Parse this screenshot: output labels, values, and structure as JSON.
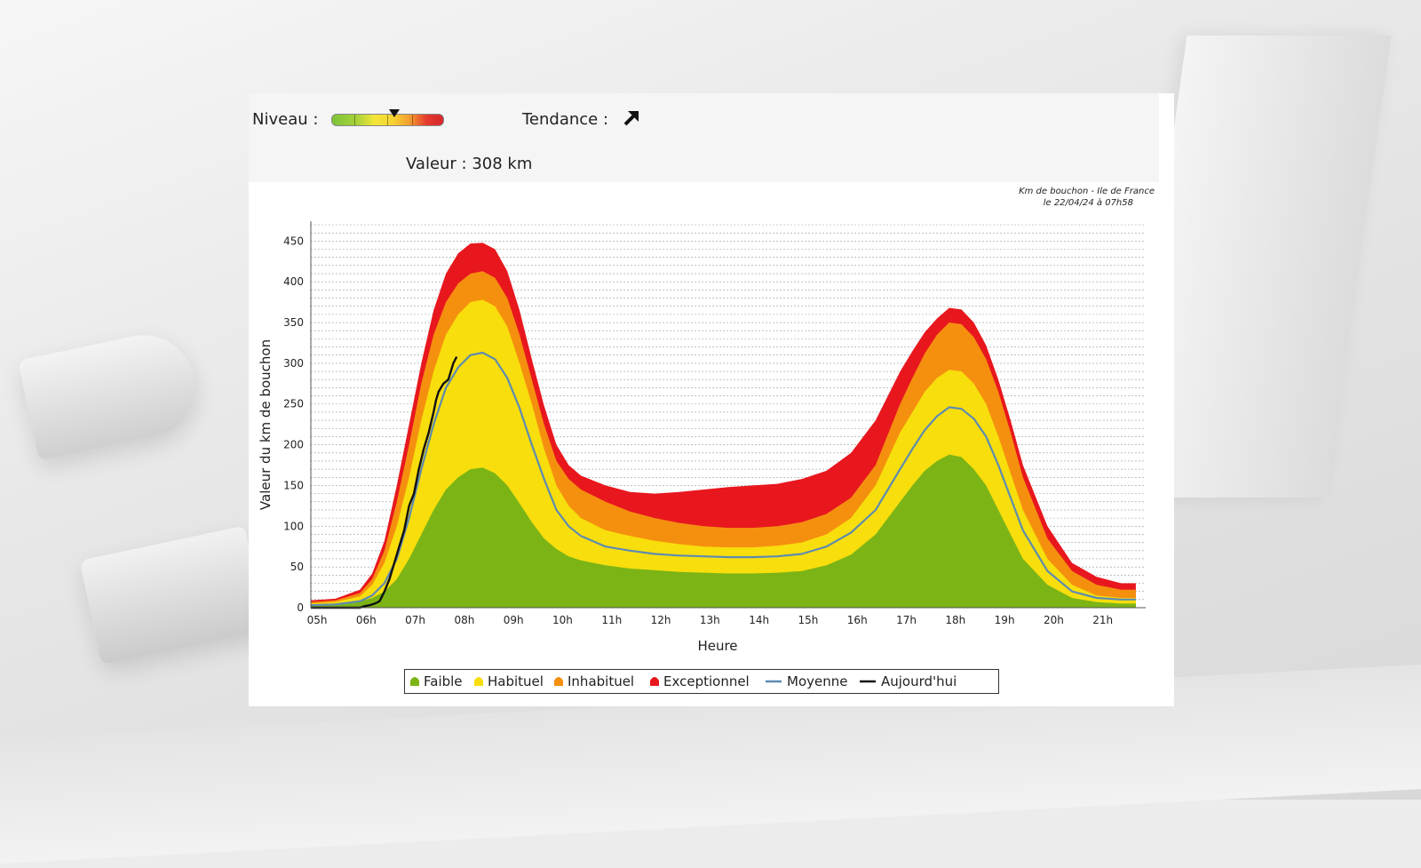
{
  "header": {
    "niveau_label": "Niveau :",
    "tendance_label": "Tendance :",
    "tendance_icon": "arrow-up-right-icon",
    "valeur_label": "Valeur : 308 km",
    "gauge_level": 0.62
  },
  "colors": {
    "faible": "#7cb416",
    "habituel": "#f8de0c",
    "inhabituel": "#f5900f",
    "exceptionnel": "#e8171e",
    "moyenne": "#5e8bb0",
    "aujourdhui": "#111111"
  },
  "chart_data": {
    "type": "area",
    "title": "Km de bouchon - Ile de France",
    "subtitle": "le 22/04/24 à 07h58",
    "xlabel": "Heure",
    "ylabel": "Valeur du  km de bouchon",
    "xlim": [
      5,
      22
    ],
    "ylim": [
      0,
      470
    ],
    "x_ticks": [
      5,
      6,
      7,
      8,
      9,
      10,
      11,
      12,
      13,
      14,
      15,
      16,
      17,
      18,
      19,
      20,
      21
    ],
    "x_tick_labels": [
      "05h",
      "06h",
      "07h",
      "08h",
      "09h",
      "10h",
      "11h",
      "12h",
      "13h",
      "14h",
      "15h",
      "16h",
      "17h",
      "18h",
      "19h",
      "20h",
      "21h"
    ],
    "y_ticks": [
      0,
      50,
      100,
      150,
      200,
      250,
      300,
      350,
      400,
      450
    ],
    "y_tick_labels": [
      "0",
      "50",
      "100",
      "150",
      "200",
      "250",
      "300",
      "350",
      "400",
      "450"
    ],
    "grid": true,
    "x": [
      5.0,
      5.5,
      6.0,
      6.25,
      6.5,
      6.75,
      7.0,
      7.25,
      7.5,
      7.75,
      8.0,
      8.25,
      8.5,
      8.75,
      9.0,
      9.25,
      9.5,
      9.75,
      10.0,
      10.25,
      10.5,
      11.0,
      11.5,
      12.0,
      12.5,
      13.0,
      13.5,
      14.0,
      14.5,
      15.0,
      15.5,
      16.0,
      16.5,
      17.0,
      17.25,
      17.5,
      17.75,
      18.0,
      18.25,
      18.5,
      18.75,
      19.0,
      19.25,
      19.5,
      20.0,
      20.5,
      21.0,
      21.5,
      21.8
    ],
    "series": [
      {
        "name": "Faible",
        "kind": "band",
        "values": [
          4,
          5,
          8,
          12,
          20,
          35,
          60,
          90,
          120,
          145,
          160,
          170,
          172,
          165,
          150,
          128,
          105,
          85,
          72,
          63,
          58,
          52,
          48,
          46,
          44,
          43,
          42,
          42,
          43,
          45,
          52,
          65,
          90,
          130,
          150,
          168,
          180,
          188,
          185,
          170,
          150,
          120,
          90,
          60,
          28,
          12,
          7,
          5,
          5
        ]
      },
      {
        "name": "Habituel",
        "kind": "band",
        "values": [
          5,
          7,
          14,
          28,
          55,
          100,
          160,
          230,
          290,
          335,
          360,
          375,
          378,
          370,
          345,
          300,
          250,
          195,
          150,
          125,
          110,
          95,
          88,
          82,
          78,
          75,
          74,
          74,
          76,
          80,
          90,
          110,
          150,
          215,
          240,
          265,
          282,
          292,
          290,
          275,
          250,
          210,
          165,
          120,
          60,
          28,
          15,
          12,
          12
        ]
      },
      {
        "name": "Inhabituel",
        "kind": "band",
        "values": [
          7,
          9,
          18,
          35,
          70,
          130,
          200,
          275,
          335,
          375,
          398,
          410,
          413,
          405,
          380,
          335,
          280,
          225,
          180,
          158,
          145,
          130,
          118,
          110,
          104,
          100,
          98,
          98,
          100,
          105,
          115,
          135,
          175,
          250,
          282,
          312,
          335,
          350,
          348,
          332,
          305,
          265,
          215,
          160,
          85,
          45,
          28,
          22,
          22
        ]
      },
      {
        "name": "Exceptionnel",
        "kind": "band",
        "values": [
          9,
          11,
          22,
          42,
          82,
          150,
          225,
          300,
          365,
          410,
          435,
          447,
          448,
          440,
          413,
          365,
          305,
          248,
          200,
          175,
          162,
          150,
          142,
          140,
          142,
          145,
          148,
          150,
          152,
          158,
          168,
          190,
          230,
          290,
          315,
          338,
          355,
          368,
          366,
          350,
          322,
          280,
          230,
          175,
          100,
          55,
          38,
          30,
          30
        ]
      },
      {
        "name": "Moyenne",
        "kind": "line",
        "values": [
          3,
          4,
          8,
          15,
          30,
          60,
          110,
          170,
          225,
          270,
          295,
          310,
          313,
          305,
          282,
          245,
          200,
          158,
          120,
          100,
          88,
          75,
          70,
          66,
          64,
          63,
          62,
          62,
          63,
          66,
          75,
          92,
          120,
          170,
          195,
          218,
          235,
          246,
          244,
          232,
          210,
          175,
          135,
          95,
          45,
          20,
          12,
          10,
          10
        ]
      },
      {
        "name": "Aujourd'hui",
        "kind": "line",
        "x": [
          5.0,
          5.5,
          6.0,
          6.1,
          6.2,
          6.3,
          6.4,
          6.5,
          6.6,
          6.7,
          6.8,
          6.9,
          7.0,
          7.1,
          7.2,
          7.3,
          7.4,
          7.5,
          7.55,
          7.6,
          7.7,
          7.8,
          7.85,
          7.9,
          7.97
        ],
        "values": [
          0,
          0,
          0,
          2,
          3,
          5,
          8,
          20,
          35,
          55,
          75,
          95,
          125,
          140,
          170,
          195,
          215,
          240,
          255,
          265,
          275,
          280,
          290,
          300,
          308
        ]
      }
    ],
    "legend": [
      "Faible",
      "Habituel",
      "Inhabituel",
      "Exceptionnel",
      "Moyenne",
      "Aujourd'hui"
    ],
    "legend_position": "bottom"
  }
}
